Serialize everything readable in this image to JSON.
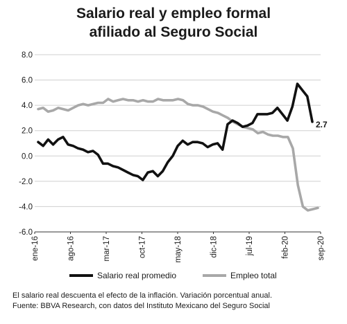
{
  "chart_data": {
    "type": "line",
    "title": [
      "Salario real y empleo formal",
      "afiliado al Seguro Social"
    ],
    "ylim": [
      -6,
      8
    ],
    "yticks": [
      "8.0",
      "6.0",
      "4.0",
      "2.0",
      "0.0",
      "-2.0",
      "-4.0",
      "-6.0"
    ],
    "xticks": [
      "ene-16",
      "ago-16",
      "mar-17",
      "oct-17",
      "may-18",
      "dic-18",
      "jul-19",
      "feb-20",
      "sep-20"
    ],
    "grid": true,
    "legend_position": "bottom",
    "series": [
      {
        "name": "Salario real promedio",
        "color": "#111111",
        "end_label": "2.7",
        "values": [
          1.1,
          0.8,
          1.3,
          0.9,
          1.3,
          1.5,
          0.9,
          0.8,
          0.6,
          0.5,
          0.3,
          0.4,
          0.1,
          -0.6,
          -0.6,
          -0.8,
          -0.9,
          -1.1,
          -1.3,
          -1.5,
          -1.6,
          -1.9,
          -1.3,
          -1.2,
          -1.6,
          -1.2,
          -0.5,
          0.0,
          0.8,
          1.2,
          0.9,
          1.1,
          1.1,
          1.0,
          0.7,
          0.9,
          1.0,
          0.5,
          2.5,
          2.8,
          2.6,
          2.3,
          2.4,
          2.6,
          3.3,
          3.3,
          3.3,
          3.4,
          3.8,
          3.3,
          2.8,
          3.9,
          5.7,
          5.2,
          4.7,
          2.7
        ]
      },
      {
        "name": "Empleo total",
        "color": "#a8a8a8",
        "values": [
          3.7,
          3.8,
          3.5,
          3.6,
          3.8,
          3.7,
          3.6,
          3.8,
          4.0,
          4.1,
          4.0,
          4.1,
          4.2,
          4.2,
          4.5,
          4.3,
          4.4,
          4.5,
          4.4,
          4.4,
          4.3,
          4.4,
          4.3,
          4.3,
          4.5,
          4.4,
          4.4,
          4.4,
          4.5,
          4.4,
          4.1,
          4.0,
          4.0,
          3.9,
          3.7,
          3.5,
          3.4,
          3.2,
          3.0,
          2.7,
          2.5,
          2.3,
          2.2,
          2.1,
          1.8,
          1.9,
          1.7,
          1.6,
          1.6,
          1.5,
          1.5,
          0.6,
          -2.3,
          -4.0,
          -4.3,
          -4.2,
          -4.1
        ]
      }
    ]
  },
  "notes": [
    "El salario real descuenta el efecto de la inflación. Variación porcentual anual.",
    "Fuente: BBVA Research, con datos del Instituto Mexicano del Seguro Social"
  ]
}
